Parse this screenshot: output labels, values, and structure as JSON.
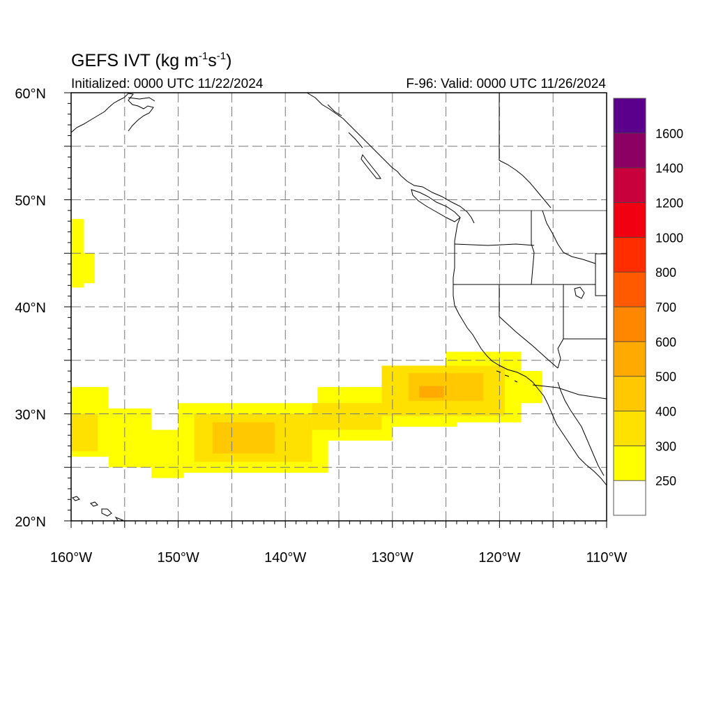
{
  "title": {
    "main": "GEFS IVT (kg m",
    "exp1": "-1",
    "mid": "s",
    "exp2": "-1",
    "end": ")"
  },
  "initialized": "Initialized: 0000 UTC 11/22/2024",
  "valid": "F-96: Valid: 0000 UTC 11/26/2024",
  "map": {
    "lon_range": [
      -160,
      -110
    ],
    "lat_range": [
      20,
      60
    ],
    "grid": "dashed",
    "x_ticks": [
      {
        "lon": -160,
        "label": "160°W"
      },
      {
        "lon": -150,
        "label": "150°W"
      },
      {
        "lon": -140,
        "label": "140°W"
      },
      {
        "lon": -130,
        "label": "130°W"
      },
      {
        "lon": -120,
        "label": "120°W"
      },
      {
        "lon": -110,
        "label": "110°W"
      }
    ],
    "y_ticks": [
      {
        "lat": 60,
        "label": "60°N"
      },
      {
        "lat": 50,
        "label": "50°N"
      },
      {
        "lat": 40,
        "label": "40°N"
      },
      {
        "lat": 30,
        "label": "30°N"
      },
      {
        "lat": 20,
        "label": "20°N"
      }
    ]
  },
  "colorbar": {
    "levels": [
      {
        "color": "#ffffff",
        "label": "250"
      },
      {
        "color": "#ffff00",
        "label": "300"
      },
      {
        "color": "#ffe100",
        "label": "400"
      },
      {
        "color": "#ffc800",
        "label": "500"
      },
      {
        "color": "#ffaa00",
        "label": "600"
      },
      {
        "color": "#ff8700",
        "label": "700"
      },
      {
        "color": "#ff5a00",
        "label": "800"
      },
      {
        "color": "#ff2d00",
        "label": "1000"
      },
      {
        "color": "#f00010",
        "label": "1200"
      },
      {
        "color": "#c8003c",
        "label": "1400"
      },
      {
        "color": "#8c0064",
        "label": "1600"
      },
      {
        "color": "#5a008c",
        "label": ""
      }
    ]
  },
  "ivt_regions": [
    {
      "level": 1,
      "lon": [
        -160,
        -158.8
      ],
      "lat": [
        41.8,
        48.2
      ]
    },
    {
      "level": 1,
      "lon": [
        -158.8,
        -157.8
      ],
      "lat": [
        42.2,
        45.0
      ]
    },
    {
      "level": 1,
      "lon": [
        -160,
        -156.5
      ],
      "lat": [
        26.0,
        32.5
      ]
    },
    {
      "level": 1,
      "lon": [
        -156.5,
        -152.5
      ],
      "lat": [
        25.0,
        30.5
      ]
    },
    {
      "level": 1,
      "lon": [
        -152.5,
        -149.5
      ],
      "lat": [
        24.0,
        28.5
      ]
    },
    {
      "level": 1,
      "lon": [
        -150,
        -136
      ],
      "lat": [
        24.5,
        31.0
      ]
    },
    {
      "level": 1,
      "lon": [
        -137,
        -130
      ],
      "lat": [
        27.5,
        32.5
      ]
    },
    {
      "level": 1,
      "lon": [
        -131,
        -124
      ],
      "lat": [
        28.8,
        34.5
      ]
    },
    {
      "level": 1,
      "lon": [
        -125,
        -118
      ],
      "lat": [
        29.2,
        35.8
      ]
    },
    {
      "level": 1,
      "lon": [
        -119,
        -116
      ],
      "lat": [
        31.0,
        34.0
      ]
    },
    {
      "level": 2,
      "lon": [
        -160,
        -157.5
      ],
      "lat": [
        26.5,
        30.0
      ]
    },
    {
      "level": 2,
      "lon": [
        -148.5,
        -137.5
      ],
      "lat": [
        25.5,
        30.0
      ]
    },
    {
      "level": 2,
      "lon": [
        -137.5,
        -131
      ],
      "lat": [
        28.5,
        31.0
      ]
    },
    {
      "level": 2,
      "lon": [
        -131,
        -119.5
      ],
      "lat": [
        29.8,
        34.5
      ]
    },
    {
      "level": 3,
      "lon": [
        -146.8,
        -141.0
      ],
      "lat": [
        26.3,
        29.2
      ]
    },
    {
      "level": 3,
      "lon": [
        -128.5,
        -121.5
      ],
      "lat": [
        31.2,
        33.8
      ]
    },
    {
      "level": 4,
      "lon": [
        -127.5,
        -125.2
      ],
      "lat": [
        31.5,
        32.6
      ]
    }
  ]
}
